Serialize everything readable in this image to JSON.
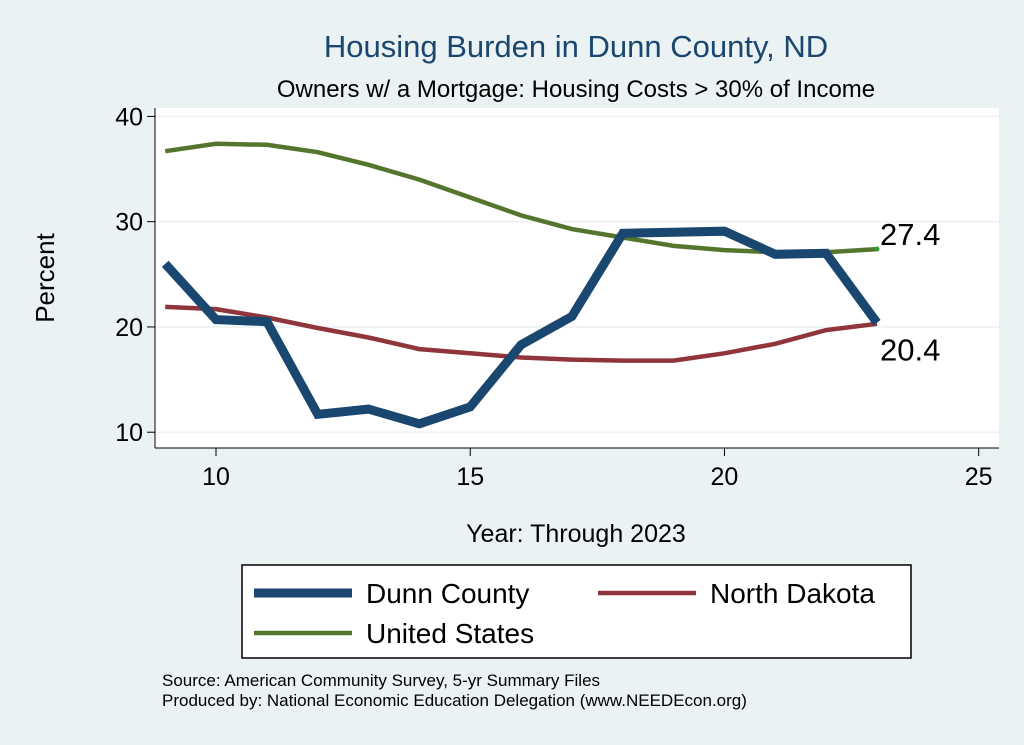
{
  "chart_data": {
    "type": "line",
    "title": "Housing Burden in Dunn County, ND",
    "subtitle": "Owners w/ a Mortgage: Housing Costs > 30% of Income",
    "xlabel": "Year: Through 2023",
    "ylabel": "Percent",
    "xlim": [
      8.8,
      25.4
    ],
    "ylim": [
      8.5,
      40.8
    ],
    "xticks": [
      10,
      15,
      20,
      25
    ],
    "yticks": [
      10,
      20,
      30,
      40
    ],
    "grid": true,
    "legend_position": "bottom",
    "series": [
      {
        "name": "Dunn County",
        "color": "#1a476f",
        "x": [
          9,
          10,
          11,
          12,
          13,
          14,
          15,
          16,
          17,
          18,
          19,
          20,
          21,
          22,
          23
        ],
        "y": [
          26.0,
          20.7,
          20.5,
          11.7,
          12.2,
          10.8,
          12.4,
          18.3,
          21.0,
          28.9,
          29.0,
          29.1,
          26.9,
          27.0,
          20.4
        ]
      },
      {
        "name": "North Dakota",
        "color": "#90353b",
        "x": [
          9,
          10,
          11,
          12,
          13,
          14,
          15,
          16,
          17,
          18,
          19,
          20,
          21,
          22,
          23
        ],
        "y": [
          21.9,
          21.7,
          20.9,
          19.9,
          19.0,
          17.9,
          17.5,
          17.1,
          16.9,
          16.8,
          16.8,
          17.5,
          18.4,
          19.7,
          20.3
        ]
      },
      {
        "name": "United States",
        "color": "#55752f",
        "x": [
          9,
          10,
          11,
          12,
          13,
          14,
          15,
          16,
          17,
          18,
          19,
          20,
          21,
          22,
          23
        ],
        "y": [
          36.7,
          37.4,
          37.3,
          36.6,
          35.4,
          34.0,
          32.3,
          30.6,
          29.3,
          28.5,
          27.7,
          27.3,
          27.1,
          27.1,
          27.4
        ]
      }
    ],
    "annotations": [
      {
        "text": "27.4",
        "x": 23,
        "y": 27.4,
        "placement": "above-right"
      },
      {
        "text": "20.4",
        "x": 23,
        "y": 20.4,
        "placement": "below-right"
      }
    ]
  },
  "footer": {
    "source": "Source: American Community Survey, 5-yr Summary Files",
    "produced_by": "Produced by: National Economic Education Delegation (www.NEEDEcon.org)"
  }
}
